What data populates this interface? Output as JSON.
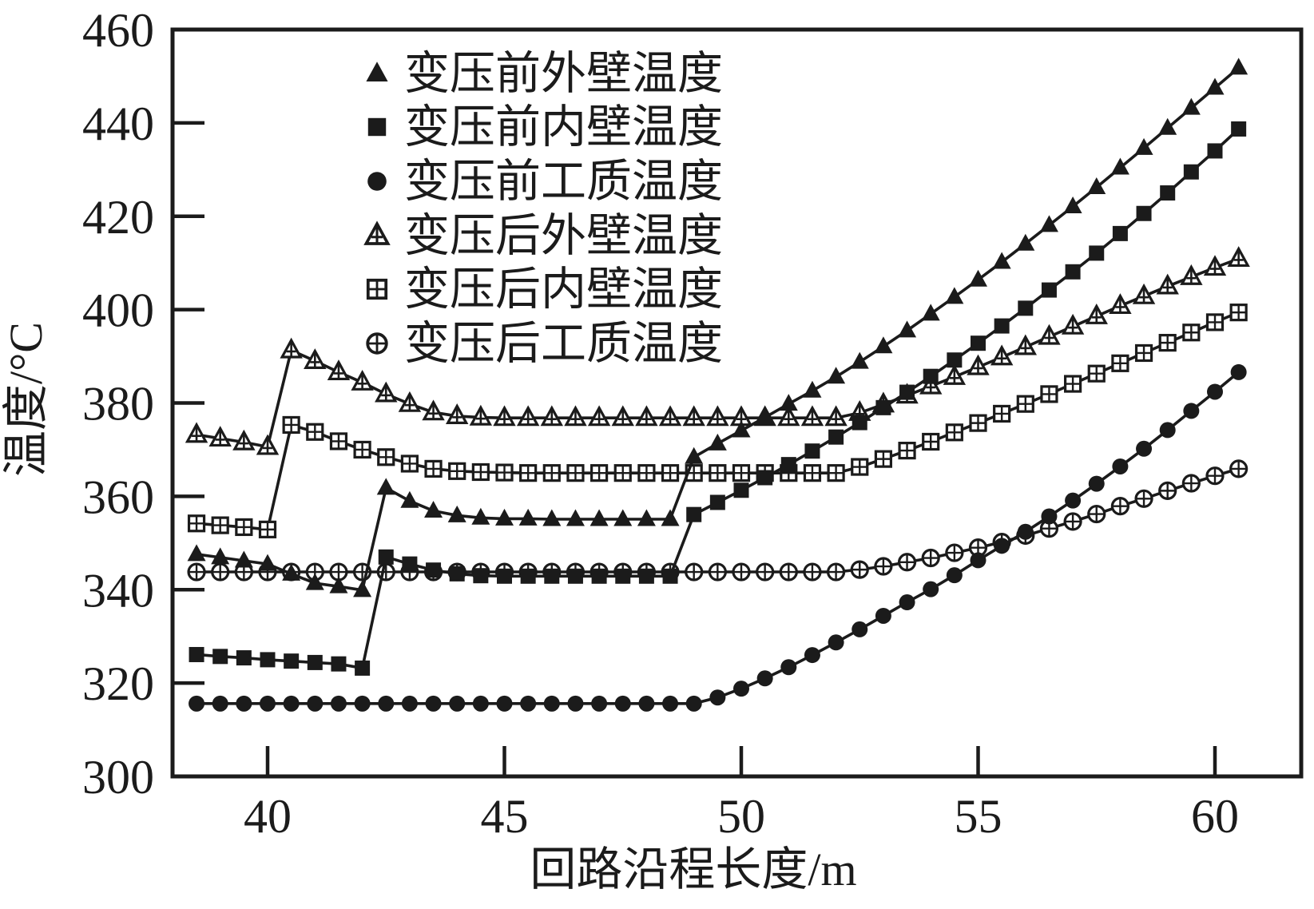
{
  "chart_data": {
    "type": "line",
    "title": "",
    "xlabel": "回路沿程长度/m",
    "ylabel": "温度/°C",
    "xlim": [
      38.0,
      61.8
    ],
    "ylim": [
      300,
      460
    ],
    "xticks": [
      40,
      45,
      50,
      55,
      60
    ],
    "yticks": [
      300,
      320,
      340,
      360,
      380,
      400,
      420,
      440,
      460
    ],
    "grid": false,
    "legend_position": "upper-left-inside",
    "ink_color": "#1b1b1b",
    "background_color": "#ffffff",
    "x": [
      38.5,
      39,
      39.5,
      40,
      40.5,
      41,
      41.5,
      42,
      42.5,
      43,
      43.5,
      44,
      44.5,
      45,
      45.5,
      46,
      46.5,
      47,
      47.5,
      48,
      48.5,
      49,
      49.5,
      50,
      50.5,
      51,
      51.5,
      52,
      52.5,
      53,
      53.5,
      54,
      54.5,
      55,
      55.5,
      56,
      56.5,
      57,
      57.5,
      58,
      58.5,
      59,
      59.5,
      60,
      60.5
    ],
    "series": [
      {
        "name": "变压前外壁温度",
        "marker": "triangle-filled",
        "values": [
          347.6,
          346.9,
          346.2,
          345.5,
          343.4,
          341.4,
          340.7,
          339.9,
          361.8,
          359.0,
          356.9,
          355.9,
          355.4,
          355.2,
          355.2,
          355.1,
          355.1,
          355.1,
          355.1,
          355.1,
          355.1,
          368.4,
          371.3,
          374.1,
          376.9,
          379.8,
          382.6,
          385.6,
          388.8,
          392.1,
          395.5,
          399.1,
          402.7,
          406.4,
          410.2,
          414.1,
          418.1,
          422.1,
          426.2,
          430.4,
          434.6,
          438.9,
          443.2,
          447.5,
          451.8
        ]
      },
      {
        "name": "变压前内壁温度",
        "marker": "square-filled",
        "values": [
          326.1,
          325.7,
          325.4,
          325.0,
          324.7,
          324.4,
          324.1,
          323.2,
          347.0,
          345.5,
          344.2,
          343.4,
          343.0,
          342.9,
          342.9,
          342.9,
          342.9,
          342.9,
          342.9,
          342.9,
          342.9,
          356.1,
          358.7,
          361.3,
          364.0,
          366.8,
          369.7,
          372.7,
          375.8,
          379.0,
          382.3,
          385.7,
          389.2,
          392.8,
          396.5,
          400.3,
          404.2,
          408.1,
          412.1,
          416.3,
          420.6,
          425.0,
          429.5,
          434.0,
          438.7
        ]
      },
      {
        "name": "变压前工质温度",
        "marker": "circle-filled",
        "values": [
          315.6,
          315.6,
          315.6,
          315.6,
          315.6,
          315.6,
          315.6,
          315.6,
          315.6,
          315.6,
          315.6,
          315.6,
          315.6,
          315.6,
          315.6,
          315.6,
          315.6,
          315.6,
          315.6,
          315.6,
          315.6,
          315.6,
          316.9,
          318.8,
          321.0,
          323.4,
          326.0,
          328.7,
          331.5,
          334.4,
          337.3,
          340.1,
          343.1,
          346.3,
          349.4,
          352.4,
          355.7,
          359.1,
          362.7,
          366.4,
          370.2,
          374.2,
          378.3,
          382.4,
          386.6
        ]
      },
      {
        "name": "变压后外壁温度",
        "marker": "triangle-open-cross",
        "values": [
          373.2,
          372.4,
          371.6,
          370.6,
          391.3,
          389.0,
          386.6,
          384.4,
          381.9,
          379.8,
          378.0,
          377.2,
          376.9,
          376.8,
          376.8,
          376.8,
          376.8,
          376.8,
          376.8,
          376.8,
          376.8,
          376.8,
          376.8,
          376.8,
          376.8,
          376.8,
          376.8,
          376.8,
          377.9,
          379.7,
          381.6,
          383.6,
          385.6,
          387.7,
          389.8,
          392.0,
          394.2,
          396.4,
          398.6,
          400.8,
          402.9,
          405.0,
          407.0,
          409.0,
          410.9
        ]
      },
      {
        "name": "变压后内壁温度",
        "marker": "square-open-cross",
        "values": [
          354.2,
          353.8,
          353.4,
          352.9,
          375.3,
          373.8,
          371.8,
          370.0,
          368.4,
          367.0,
          365.9,
          365.4,
          365.2,
          365.1,
          365.0,
          365.0,
          365.0,
          365.0,
          365.0,
          365.0,
          365.0,
          365.0,
          365.0,
          365.0,
          365.0,
          365.0,
          365.0,
          365.0,
          366.3,
          368.0,
          369.8,
          371.7,
          373.7,
          375.7,
          377.7,
          379.8,
          381.9,
          384.1,
          386.3,
          388.5,
          390.7,
          392.9,
          395.1,
          397.3,
          399.4
        ]
      },
      {
        "name": "变压后工质温度",
        "marker": "circle-open-cross",
        "values": [
          343.8,
          343.8,
          343.8,
          343.8,
          343.8,
          343.8,
          343.8,
          343.8,
          343.8,
          343.8,
          343.8,
          343.8,
          343.8,
          343.8,
          343.8,
          343.8,
          343.8,
          343.8,
          343.8,
          343.8,
          343.8,
          343.8,
          343.8,
          343.8,
          343.8,
          343.8,
          343.8,
          343.8,
          344.3,
          345.0,
          345.9,
          346.8,
          347.9,
          349.0,
          350.2,
          351.6,
          353.1,
          354.6,
          356.2,
          357.9,
          359.5,
          361.2,
          362.8,
          364.4,
          365.9
        ]
      }
    ]
  }
}
